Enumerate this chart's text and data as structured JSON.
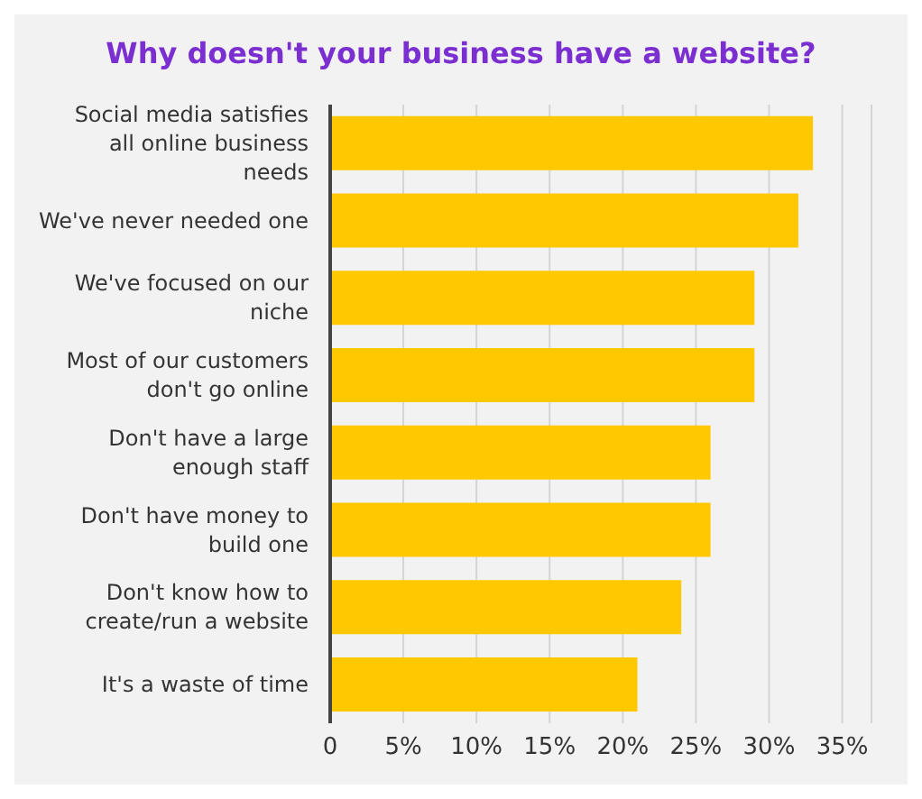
{
  "chart_data": {
    "type": "bar",
    "orientation": "horizontal",
    "title": "Why doesn't your business have a website?",
    "categories": [
      "Social media satisfies all online business needs",
      "We've never needed one",
      "We've focused on our niche",
      "Most of our customers don't go online",
      "Don't have a large enough staff",
      "Don't have money to build one",
      "Don't know how to create/run a website",
      "It's a waste of time"
    ],
    "values": [
      33,
      32,
      29,
      29,
      26,
      26,
      24,
      21
    ],
    "color": "#ffc800",
    "xlim": [
      0,
      37
    ],
    "xticks": [
      0,
      {
        "value": 5,
        "label": "5%"
      },
      {
        "value": 10,
        "label": "10%"
      },
      {
        "value": 15,
        "label": "15%"
      },
      {
        "value": 20,
        "label": "20%"
      },
      {
        "value": 25,
        "label": "25%"
      },
      {
        "value": 30,
        "label": "30%"
      },
      {
        "value": 35,
        "label": "35%"
      }
    ],
    "grid": "x"
  }
}
